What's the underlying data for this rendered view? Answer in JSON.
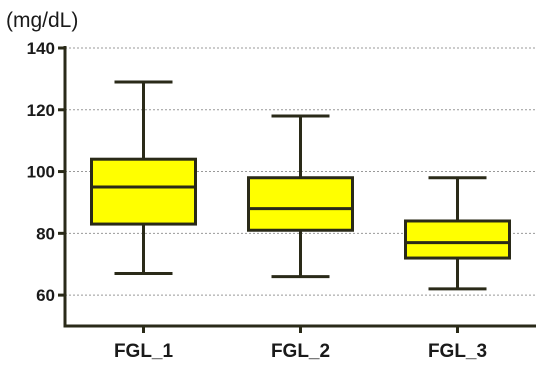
{
  "chart_data": {
    "type": "boxplot",
    "unit_label": "(mg/dL)",
    "categories": [
      "FGL_1",
      "FGL_2",
      "FGL_3"
    ],
    "boxes": [
      {
        "min": 67,
        "q1": 83,
        "median": 95,
        "q3": 104,
        "max": 129
      },
      {
        "min": 66,
        "q1": 81,
        "median": 88,
        "q3": 98,
        "max": 118
      },
      {
        "min": 62,
        "q1": 72,
        "median": 77,
        "q3": 84,
        "max": 98
      }
    ],
    "yticks": [
      "60",
      "80",
      "100",
      "120",
      "140"
    ],
    "ylim": [
      50,
      140
    ],
    "grid": true,
    "box_color": "#ffff00",
    "line_color": "#2a2a18",
    "grid_color": "#999999"
  }
}
